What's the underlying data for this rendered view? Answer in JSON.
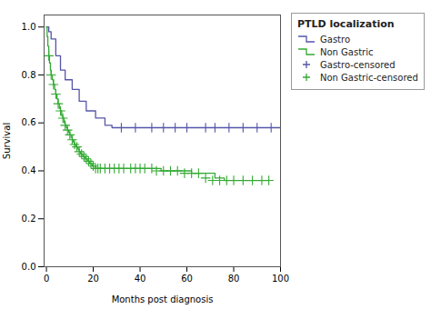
{
  "chart_data": {
    "type": "line",
    "title": "PTLD localization",
    "x_label": "Months post diagnosis",
    "y_label": "Survival",
    "xlim": [
      -1,
      100
    ],
    "ylim": [
      0.0,
      1.05
    ],
    "xticks": [
      0,
      20,
      40,
      60,
      80,
      100
    ],
    "yticks": [
      {
        "value": 0.0,
        "label": "0.0"
      },
      0.2,
      0.4,
      0.6,
      0.8,
      {
        "value": 1.0,
        "label": "1.0"
      }
    ],
    "grid": false,
    "legend": "right",
    "series": [
      {
        "name": "Gastro",
        "type": "step",
        "line_style": "solid",
        "color": "#5555aa",
        "x": [
          0,
          1,
          2,
          4,
          6,
          8,
          11,
          14,
          17,
          21,
          25,
          28,
          100
        ],
        "values": [
          1.0,
          0.98,
          0.95,
          0.88,
          0.82,
          0.78,
          0.74,
          0.69,
          0.65,
          0.62,
          0.59,
          0.58,
          0.58
        ]
      },
      {
        "name": "Non Gastric",
        "type": "step",
        "line_style": "solid",
        "color": "#33aa33",
        "x": [
          0,
          0.3,
          0.6,
          1,
          1.3,
          1.7,
          2,
          2.5,
          3,
          3.5,
          4,
          4.5,
          5,
          5.5,
          6,
          6.5,
          7,
          7.5,
          8,
          8.5,
          9,
          9.5,
          10,
          10.5,
          11,
          11.5,
          12,
          12.5,
          13,
          13.5,
          14,
          14.5,
          15,
          15.5,
          16,
          16.5,
          17,
          17.5,
          18,
          18.5,
          19,
          19.5,
          20,
          21,
          22,
          23,
          24,
          25,
          26,
          27,
          28,
          29,
          30,
          32,
          34,
          36,
          38,
          40,
          43,
          46,
          49,
          52,
          55,
          58,
          62,
          65,
          68,
          72,
          76,
          80,
          84,
          88,
          92,
          95
        ],
        "values": [
          1.0,
          0.96,
          0.92,
          0.88,
          0.85,
          0.82,
          0.8,
          0.78,
          0.76,
          0.74,
          0.72,
          0.7,
          0.68,
          0.66,
          0.65,
          0.63,
          0.62,
          0.6,
          0.59,
          0.58,
          0.57,
          0.56,
          0.55,
          0.54,
          0.53,
          0.52,
          0.51,
          0.5,
          0.5,
          0.49,
          0.48,
          0.47,
          0.47,
          0.46,
          0.46,
          0.45,
          0.45,
          0.44,
          0.44,
          0.43,
          0.43,
          0.42,
          0.42,
          0.41,
          0.41,
          0.41,
          0.41,
          0.41,
          0.41,
          0.41,
          0.41,
          0.41,
          0.41,
          0.41,
          0.41,
          0.41,
          0.41,
          0.41,
          0.41,
          0.41,
          0.4,
          0.4,
          0.4,
          0.4,
          0.39,
          0.39,
          0.39,
          0.37,
          0.36,
          0.36,
          0.36,
          0.36,
          0.36,
          0.36
        ]
      },
      {
        "name": "Gastro-censored",
        "type": "scatter",
        "marker": "plus",
        "color": "#5555aa",
        "x": [
          32,
          38,
          45,
          50,
          55,
          60,
          68,
          72,
          78,
          84,
          90,
          96
        ],
        "values": [
          0.58,
          0.58,
          0.58,
          0.58,
          0.58,
          0.58,
          0.58,
          0.58,
          0.58,
          0.58,
          0.58,
          0.58
        ]
      },
      {
        "name": "Non Gastric-censored",
        "type": "scatter",
        "marker": "plus",
        "color": "#33aa33",
        "x": [
          1,
          2,
          3,
          4,
          5,
          6,
          7,
          8,
          9,
          10,
          11,
          12,
          13,
          14,
          15,
          16,
          17,
          18,
          19,
          20,
          21,
          22,
          23,
          25,
          27,
          29,
          31,
          33,
          36,
          38,
          40,
          42,
          45,
          47,
          50,
          53,
          56,
          59,
          62,
          65,
          68,
          71,
          74,
          77,
          80,
          84,
          88,
          92,
          95
        ],
        "values": [
          0.88,
          0.8,
          0.76,
          0.72,
          0.68,
          0.65,
          0.62,
          0.59,
          0.57,
          0.55,
          0.53,
          0.51,
          0.5,
          0.48,
          0.47,
          0.46,
          0.45,
          0.44,
          0.43,
          0.42,
          0.41,
          0.41,
          0.41,
          0.41,
          0.41,
          0.41,
          0.41,
          0.41,
          0.41,
          0.41,
          0.41,
          0.41,
          0.41,
          0.4,
          0.4,
          0.4,
          0.4,
          0.39,
          0.39,
          0.39,
          0.37,
          0.36,
          0.36,
          0.36,
          0.36,
          0.36,
          0.36,
          0.36,
          0.36
        ]
      }
    ]
  }
}
